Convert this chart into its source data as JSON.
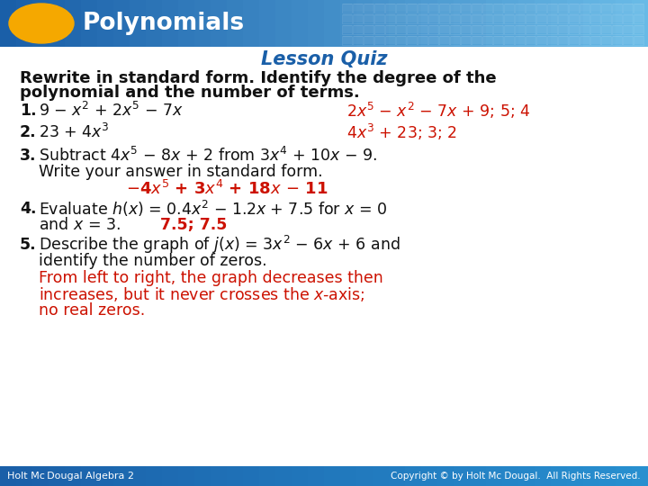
{
  "title_text": "Polynomials",
  "title_text_color": "#ffffff",
  "ellipse_color": "#f5a800",
  "header_bar_left": "#1a5fa8",
  "header_bar_right": "#5ab4e0",
  "tile_color": "#4aa8d8",
  "bg_color": "#ffffff",
  "header_color": "#1a5fa8",
  "header_text": "Lesson Quiz",
  "footer_bg_left": "#1a5fa8",
  "footer_bg_right": "#2080c0",
  "footer_left": "Holt Mc Dougal Algebra 2",
  "footer_right": "Copyright © by Holt Mc Dougal. All Rights Reserved.",
  "black": "#111111",
  "red": "#cc1100",
  "bold_red": "#cc1100"
}
